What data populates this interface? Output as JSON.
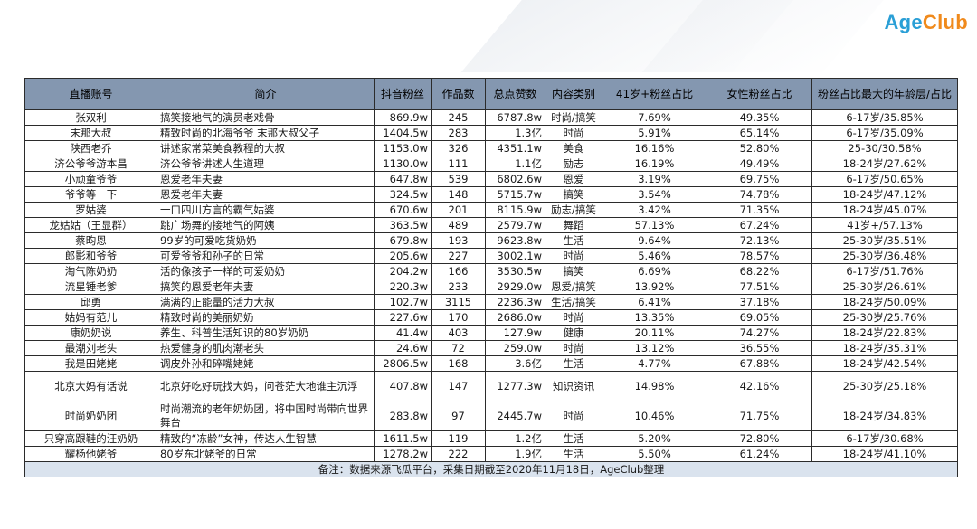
{
  "logo": {
    "part1": "Age",
    "part2": "Club"
  },
  "table": {
    "headers": [
      "直播账号",
      "简介",
      "抖音粉丝",
      "作品数",
      "总点赞数",
      "内容类别",
      "41岁+粉丝占比",
      "女性粉丝占比",
      "粉丝占比最大的年龄层/占比"
    ],
    "rows": [
      [
        "张双利",
        "搞笑接地气的演员老戏骨",
        "869.9w",
        "245",
        "6787.8w",
        "时尚/搞笑",
        "7.69%",
        "49.35%",
        "6-17岁/35.85%"
      ],
      [
        "末那大叔",
        "精致时尚的北海爷爷 末那大叔父子",
        "1404.5w",
        "283",
        "1.3亿",
        "时尚",
        "5.91%",
        "65.14%",
        "6-17岁/35.09%"
      ],
      [
        "陕西老乔",
        "讲述家常菜美食教程的大叔",
        "1153.0w",
        "326",
        "4351.1w",
        "美食",
        "16.16%",
        "52.80%",
        "25-30/30.58%"
      ],
      [
        "济公爷爷游本昌",
        "济公爷爷讲述人生道理",
        "1130.0w",
        "111",
        "1.1亿",
        "励志",
        "16.19%",
        "49.49%",
        "18-24岁/27.62%"
      ],
      [
        "小顽童爷爷",
        "恩爱老年夫妻",
        "647.8w",
        "539",
        "6802.6w",
        "恩爱",
        "3.19%",
        "69.75%",
        "6-17岁/50.65%"
      ],
      [
        "爷爷等一下",
        "恩爱老年夫妻",
        "324.5w",
        "148",
        "5715.7w",
        "搞笑",
        "3.54%",
        "74.78%",
        "18-24岁/47.12%"
      ],
      [
        "罗姑婆",
        "一口四川方言的霸气姑婆",
        "670.6w",
        "201",
        "8115.9w",
        "励志/搞笑",
        "3.42%",
        "71.35%",
        "18-24岁/45.07%"
      ],
      [
        "龙姑姑（王显群）",
        "跳广场舞的接地气的阿姨",
        "363.5w",
        "489",
        "2579.7w",
        "舞蹈",
        "57.13%",
        "67.24%",
        "41岁+/57.13%"
      ],
      [
        "蔡昀恩",
        "99岁的可爱吃货奶奶",
        "679.8w",
        "193",
        "9623.8w",
        "生活",
        "9.64%",
        "72.13%",
        "25-30岁/35.51%"
      ],
      [
        "郎影和爷爷",
        "可爱爷爷和孙子的日常",
        "205.6w",
        "227",
        "3002.1w",
        "时尚",
        "5.46%",
        "78.57%",
        "25-30岁/36.48%"
      ],
      [
        "淘气陈奶奶",
        "活的像孩子一样的可爱奶奶",
        "204.2w",
        "166",
        "3530.5w",
        "搞笑",
        "6.69%",
        "68.22%",
        "6-17岁/51.76%"
      ],
      [
        "流星锤老爹",
        "搞笑的恩爱老年夫妻",
        "220.3w",
        "233",
        "2929.0w",
        "恩爱/搞笑",
        "13.92%",
        "77.51%",
        "25-30岁/26.61%"
      ],
      [
        "邱勇",
        "满满的正能量的活力大叔",
        "102.7w",
        "3115",
        "2236.3w",
        "生活/搞笑",
        "6.41%",
        "37.18%",
        "18-24岁/50.09%"
      ],
      [
        "姑妈有范儿",
        "精致时尚的美丽奶奶",
        "227.6w",
        "170",
        "2686.0w",
        "时尚",
        "13.35%",
        "69.05%",
        "25-30岁/25.76%"
      ],
      [
        "康奶奶说",
        "养生、科普生活知识的80岁奶奶",
        "41.4w",
        "403",
        "127.9w",
        "健康",
        "20.11%",
        "74.27%",
        "18-24岁/22.83%"
      ],
      [
        "最潮刘老头",
        "热爱健身的肌肉潮老头",
        "24.6w",
        "72",
        "259.0w",
        "时尚",
        "13.12%",
        "36.55%",
        "18-24岁/35.31%"
      ],
      [
        "我是田姥姥",
        "调皮外孙和碎嘴姥姥",
        "2806.5w",
        "168",
        "3.6亿",
        "生活",
        "4.77%",
        "67.88%",
        "18-24岁/42.54%"
      ],
      [
        "北京大妈有话说",
        "北京好吃好玩找大妈，问苍茫大地谁主沉浮",
        "407.8w",
        "147",
        "1277.3w",
        "知识资讯",
        "14.98%",
        "42.16%",
        "25-30岁/25.18%"
      ],
      [
        "时尚奶奶团",
        "时尚潮流的老年奶奶团，将中国时尚带向世界舞台",
        "283.8w",
        "97",
        "2445.7w",
        "时尚",
        "10.46%",
        "71.75%",
        "18-24岁/34.83%"
      ],
      [
        "只穿高跟鞋的汪奶奶",
        "精致的“冻龄”女神，传达人生智慧",
        "1611.5w",
        "119",
        "1.2亿",
        "生活",
        "5.20%",
        "72.80%",
        "6-17岁/30.68%"
      ],
      [
        "耀杨他姥爷",
        "80岁东北姥爷的日常",
        "1278.2w",
        "222",
        "1.9亿",
        "生活",
        "5.50%",
        "61.24%",
        "18-24岁/41.10%"
      ]
    ],
    "note": "备注：数据来源飞瓜平台，采集日期截至2020年11月18日，AgeClub整理"
  }
}
